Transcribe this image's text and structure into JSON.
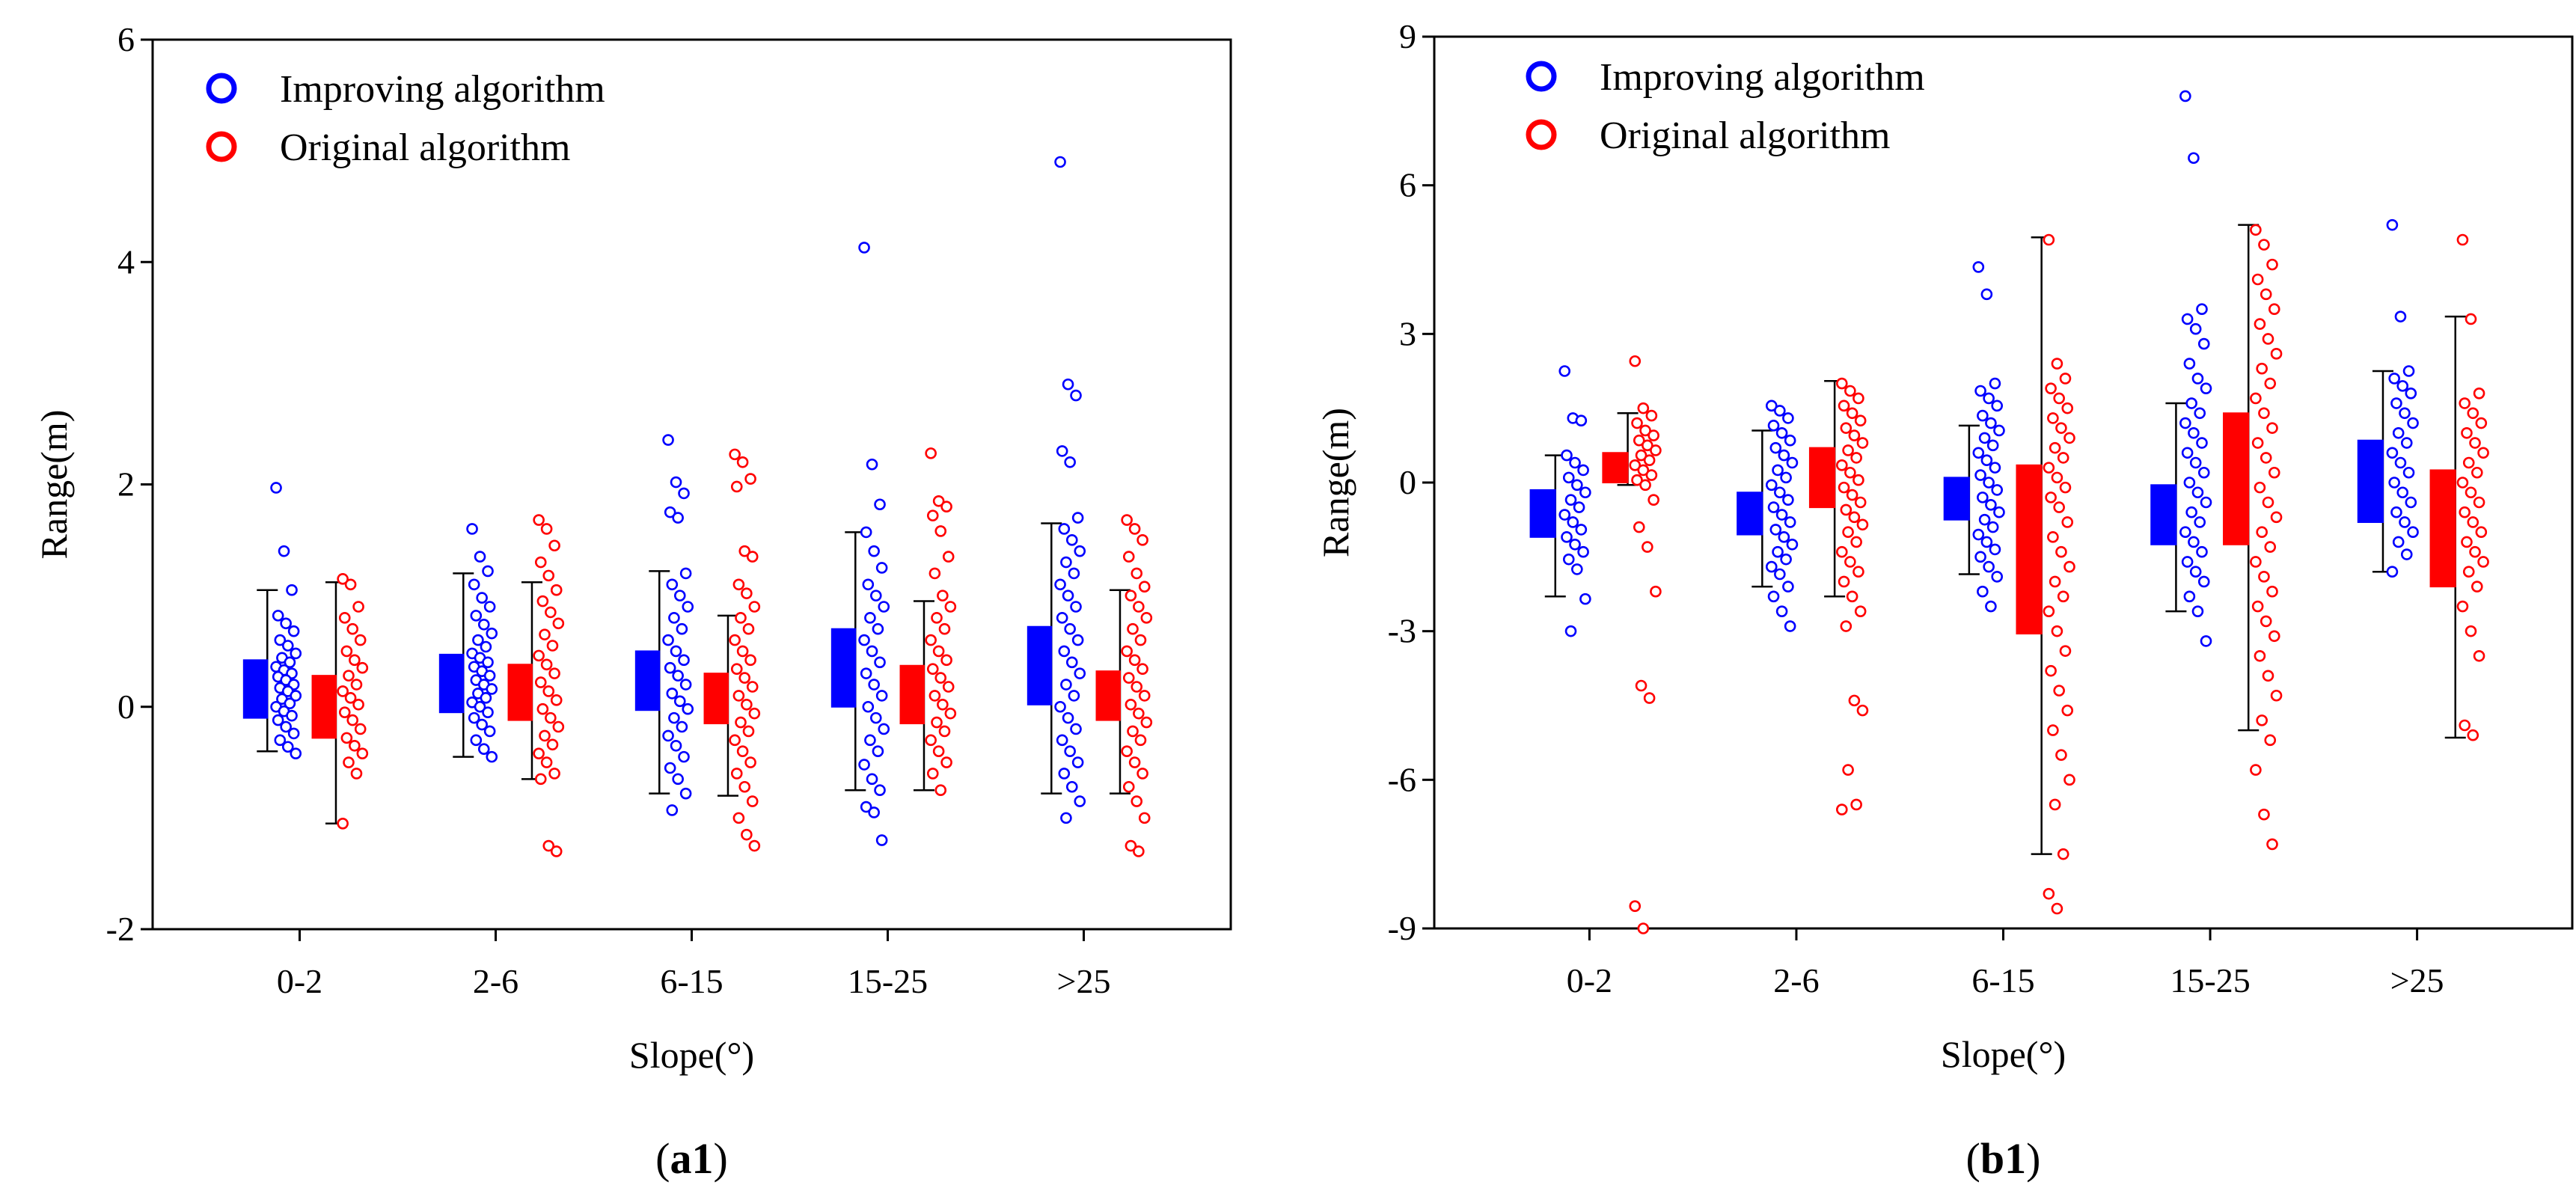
{
  "chart_data": [
    {
      "type": "box-scatter",
      "panel_label": "a1",
      "xlabel": "Slope(°)",
      "ylabel": "Range(m)",
      "ylim": [
        -2,
        6
      ],
      "yticks": [
        -2,
        0,
        2,
        4,
        6
      ],
      "categories": [
        "0-2",
        "2-6",
        "6-15",
        "15-25",
        ">25"
      ],
      "legend_position": "top-left",
      "series": [
        {
          "name": "Improving algorithm",
          "color": "#0000ff",
          "groups": [
            {
              "whisker": [
                -0.4,
                1.05
              ],
              "box": [
                -0.1,
                0.42
              ],
              "points": [
                1.97,
                1.4,
                1.05,
                0.82,
                0.75,
                0.68,
                0.6,
                0.55,
                0.48,
                0.44,
                0.4,
                0.36,
                0.33,
                0.3,
                0.27,
                0.24,
                0.2,
                0.17,
                0.14,
                0.1,
                0.07,
                0.03,
                0.0,
                -0.04,
                -0.08,
                -0.12,
                -0.18,
                -0.24,
                -0.3,
                -0.36,
                -0.42
              ]
            },
            {
              "whisker": [
                -0.45,
                1.2
              ],
              "box": [
                -0.05,
                0.47
              ],
              "points": [
                1.6,
                1.35,
                1.22,
                1.1,
                0.98,
                0.9,
                0.82,
                0.74,
                0.66,
                0.6,
                0.54,
                0.48,
                0.44,
                0.4,
                0.36,
                0.32,
                0.28,
                0.24,
                0.2,
                0.16,
                0.12,
                0.08,
                0.04,
                0.0,
                -0.05,
                -0.1,
                -0.16,
                -0.22,
                -0.3,
                -0.38,
                -0.45
              ]
            },
            {
              "whisker": [
                -0.78,
                1.22
              ],
              "box": [
                -0.03,
                0.5
              ],
              "points": [
                2.4,
                2.02,
                1.92,
                1.75,
                1.7,
                1.2,
                1.1,
                1.0,
                0.9,
                0.8,
                0.7,
                0.6,
                0.5,
                0.42,
                0.35,
                0.28,
                0.2,
                0.12,
                0.05,
                -0.02,
                -0.1,
                -0.18,
                -0.26,
                -0.35,
                -0.45,
                -0.55,
                -0.65,
                -0.78,
                -0.93
              ]
            },
            {
              "whisker": [
                -0.75,
                1.57
              ],
              "box": [
                0.0,
                0.7
              ],
              "points": [
                4.13,
                2.18,
                1.82,
                1.57,
                1.4,
                1.25,
                1.1,
                1.0,
                0.9,
                0.8,
                0.7,
                0.6,
                0.5,
                0.4,
                0.3,
                0.2,
                0.1,
                0.0,
                -0.1,
                -0.2,
                -0.3,
                -0.4,
                -0.52,
                -0.65,
                -0.75,
                -0.9,
                -0.95,
                -1.2
              ]
            },
            {
              "whisker": [
                -0.78,
                1.65
              ],
              "box": [
                0.02,
                0.72
              ],
              "points": [
                4.9,
                2.9,
                2.8,
                2.3,
                2.2,
                1.7,
                1.6,
                1.5,
                1.4,
                1.3,
                1.2,
                1.1,
                1.0,
                0.9,
                0.8,
                0.7,
                0.6,
                0.5,
                0.4,
                0.3,
                0.2,
                0.1,
                0.0,
                -0.1,
                -0.2,
                -0.3,
                -0.4,
                -0.5,
                -0.6,
                -0.72,
                -0.85,
                -1.0
              ]
            }
          ]
        },
        {
          "name": "Original algorithm",
          "color": "#ff0000",
          "groups": [
            {
              "whisker": [
                -1.05,
                1.12
              ],
              "box": [
                -0.28,
                0.28
              ],
              "points": [
                1.15,
                1.1,
                0.9,
                0.8,
                0.7,
                0.6,
                0.5,
                0.42,
                0.35,
                0.28,
                0.2,
                0.14,
                0.08,
                0.02,
                -0.05,
                -0.12,
                -0.2,
                -0.28,
                -0.35,
                -0.42,
                -0.5,
                -0.6,
                -1.05
              ]
            },
            {
              "whisker": [
                -0.65,
                1.12
              ],
              "box": [
                -0.12,
                0.38
              ],
              "points": [
                1.68,
                1.6,
                1.45,
                1.3,
                1.18,
                1.05,
                0.95,
                0.85,
                0.75,
                0.65,
                0.55,
                0.46,
                0.38,
                0.3,
                0.22,
                0.14,
                0.06,
                -0.02,
                -0.1,
                -0.18,
                -0.26,
                -0.34,
                -0.42,
                -0.5,
                -0.6,
                -0.65,
                -1.25,
                -1.3
              ]
            },
            {
              "whisker": [
                -0.8,
                0.82
              ],
              "box": [
                -0.15,
                0.3
              ],
              "points": [
                2.27,
                2.2,
                2.05,
                1.98,
                1.4,
                1.35,
                1.1,
                1.02,
                0.9,
                0.8,
                0.7,
                0.6,
                0.5,
                0.42,
                0.34,
                0.26,
                0.18,
                0.1,
                0.02,
                -0.06,
                -0.14,
                -0.22,
                -0.3,
                -0.4,
                -0.5,
                -0.6,
                -0.72,
                -0.85,
                -1.0,
                -1.15,
                -1.25
              ]
            },
            {
              "whisker": [
                -0.75,
                0.95
              ],
              "box": [
                -0.15,
                0.37
              ],
              "points": [
                2.28,
                1.85,
                1.8,
                1.72,
                1.58,
                1.35,
                1.2,
                1.0,
                0.9,
                0.8,
                0.7,
                0.6,
                0.5,
                0.42,
                0.34,
                0.26,
                0.18,
                0.1,
                0.02,
                -0.06,
                -0.14,
                -0.22,
                -0.3,
                -0.4,
                -0.5,
                -0.6,
                -0.75
              ]
            },
            {
              "whisker": [
                -0.78,
                1.05
              ],
              "box": [
                -0.12,
                0.32
              ],
              "points": [
                1.68,
                1.6,
                1.5,
                1.35,
                1.2,
                1.08,
                1.0,
                0.9,
                0.8,
                0.7,
                0.6,
                0.5,
                0.42,
                0.34,
                0.26,
                0.18,
                0.1,
                0.02,
                -0.06,
                -0.14,
                -0.22,
                -0.3,
                -0.4,
                -0.5,
                -0.6,
                -0.72,
                -0.85,
                -1.0,
                -1.25,
                -1.3
              ]
            }
          ]
        }
      ]
    },
    {
      "type": "box-scatter",
      "panel_label": "b1",
      "xlabel": "Slope(°)",
      "ylabel": "Range(m)",
      "ylim": [
        -9,
        9
      ],
      "yticks": [
        -9,
        -6,
        -3,
        0,
        3,
        6,
        9
      ],
      "categories": [
        "0-2",
        "2-6",
        "6-15",
        "15-25",
        ">25"
      ],
      "legend_position": "top-left",
      "series": [
        {
          "name": "Improving algorithm",
          "color": "#0000ff",
          "groups": [
            {
              "whisker": [
                -2.3,
                0.55
              ],
              "box": [
                -1.1,
                -0.15
              ],
              "points": [
                2.25,
                1.3,
                1.25,
                0.55,
                0.4,
                0.25,
                0.1,
                -0.05,
                -0.2,
                -0.35,
                -0.5,
                -0.65,
                -0.8,
                -0.95,
                -1.1,
                -1.25,
                -1.4,
                -1.55,
                -1.75,
                -2.35,
                -3.0
              ]
            },
            {
              "whisker": [
                -2.1,
                1.05
              ],
              "box": [
                -1.05,
                -0.2
              ],
              "points": [
                1.55,
                1.45,
                1.3,
                1.15,
                1.0,
                0.85,
                0.7,
                0.55,
                0.4,
                0.25,
                0.1,
                -0.05,
                -0.2,
                -0.35,
                -0.5,
                -0.65,
                -0.8,
                -0.95,
                -1.1,
                -1.25,
                -1.4,
                -1.55,
                -1.7,
                -1.85,
                -2.1,
                -2.3,
                -2.6,
                -2.9
              ]
            },
            {
              "whisker": [
                -1.85,
                1.15
              ],
              "box": [
                -0.75,
                0.1
              ],
              "points": [
                4.35,
                3.8,
                2.0,
                1.85,
                1.7,
                1.55,
                1.35,
                1.2,
                1.05,
                0.9,
                0.75,
                0.6,
                0.45,
                0.3,
                0.15,
                0.0,
                -0.15,
                -0.3,
                -0.45,
                -0.6,
                -0.75,
                -0.9,
                -1.05,
                -1.2,
                -1.35,
                -1.5,
                -1.7,
                -1.9,
                -2.2,
                -2.5
              ]
            },
            {
              "whisker": [
                -2.6,
                1.6
              ],
              "box": [
                -1.25,
                -0.05
              ],
              "points": [
                7.8,
                6.55,
                3.5,
                3.3,
                3.1,
                2.8,
                2.4,
                2.1,
                1.9,
                1.6,
                1.4,
                1.2,
                1.0,
                0.8,
                0.6,
                0.4,
                0.2,
                0.0,
                -0.2,
                -0.4,
                -0.6,
                -0.8,
                -1.0,
                -1.2,
                -1.4,
                -1.6,
                -1.8,
                -2.0,
                -2.3,
                -2.6,
                -3.2
              ]
            },
            {
              "whisker": [
                -1.8,
                2.25
              ],
              "box": [
                -0.8,
                0.85
              ],
              "points": [
                5.2,
                3.35,
                2.25,
                2.1,
                1.95,
                1.8,
                1.6,
                1.4,
                1.2,
                1.0,
                0.8,
                0.6,
                0.4,
                0.2,
                0.0,
                -0.2,
                -0.4,
                -0.6,
                -0.8,
                -1.0,
                -1.2,
                -1.45,
                -1.8
              ]
            }
          ]
        },
        {
          "name": "Original algorithm",
          "color": "#ff0000",
          "groups": [
            {
              "whisker": [
                -0.05,
                1.4
              ],
              "box": [
                0.0,
                0.6
              ],
              "points": [
                2.45,
                1.5,
                1.35,
                1.2,
                1.05,
                0.95,
                0.85,
                0.75,
                0.65,
                0.55,
                0.45,
                0.35,
                0.25,
                0.15,
                0.05,
                -0.05,
                -0.35,
                -0.9,
                -1.3,
                -2.2,
                -4.1,
                -4.35,
                -8.55,
                -9.0
              ]
            },
            {
              "whisker": [
                -2.3,
                2.05
              ],
              "box": [
                -0.5,
                0.7
              ],
              "points": [
                2.0,
                1.85,
                1.7,
                1.55,
                1.4,
                1.25,
                1.1,
                0.95,
                0.8,
                0.65,
                0.5,
                0.35,
                0.2,
                0.05,
                -0.1,
                -0.25,
                -0.4,
                -0.55,
                -0.7,
                -0.85,
                -1.0,
                -1.2,
                -1.4,
                -1.6,
                -1.8,
                -2.0,
                -2.3,
                -2.6,
                -2.9,
                -4.4,
                -4.6,
                -5.8,
                -6.5,
                -6.6
              ]
            },
            {
              "whisker": [
                -7.5,
                4.95
              ],
              "box": [
                -3.05,
                0.35
              ],
              "points": [
                4.9,
                2.4,
                2.1,
                1.9,
                1.7,
                1.5,
                1.3,
                1.1,
                0.9,
                0.7,
                0.5,
                0.3,
                0.1,
                -0.1,
                -0.3,
                -0.5,
                -0.8,
                -1.1,
                -1.4,
                -1.7,
                -2.0,
                -2.3,
                -2.6,
                -3.0,
                -3.4,
                -3.8,
                -4.2,
                -4.6,
                -5.0,
                -5.5,
                -6.0,
                -6.5,
                -7.5,
                -8.3,
                -8.6
              ]
            },
            {
              "whisker": [
                -5.0,
                5.2
              ],
              "box": [
                -1.25,
                1.4
              ],
              "points": [
                5.1,
                4.8,
                4.4,
                4.1,
                3.8,
                3.5,
                3.2,
                2.9,
                2.6,
                2.3,
                2.0,
                1.7,
                1.4,
                1.1,
                0.8,
                0.5,
                0.2,
                -0.1,
                -0.4,
                -0.7,
                -1.0,
                -1.3,
                -1.6,
                -1.9,
                -2.2,
                -2.5,
                -2.8,
                -3.1,
                -3.5,
                -3.9,
                -4.3,
                -4.8,
                -5.2,
                -5.8,
                -6.7,
                -7.3
              ]
            },
            {
              "whisker": [
                -5.15,
                3.35
              ],
              "box": [
                -2.1,
                0.25
              ],
              "points": [
                4.9,
                3.3,
                1.8,
                1.6,
                1.4,
                1.2,
                1.0,
                0.8,
                0.6,
                0.4,
                0.2,
                0.0,
                -0.2,
                -0.4,
                -0.6,
                -0.8,
                -1.0,
                -1.2,
                -1.4,
                -1.6,
                -1.8,
                -2.1,
                -2.5,
                -3.0,
                -3.5,
                -4.9,
                -5.1
              ]
            }
          ]
        }
      ]
    }
  ]
}
